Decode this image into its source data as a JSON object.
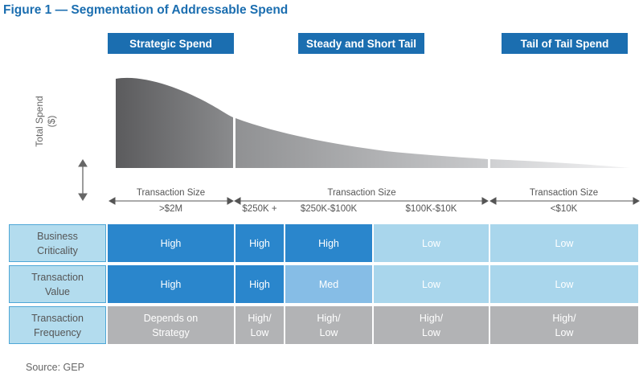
{
  "title": "Figure 1 — Segmentation of Addressable Spend",
  "segments": [
    "Strategic Spend",
    "Steady and Short Tail",
    "Tail of Tail Spend"
  ],
  "y_axis_label_line1": "Total Spend",
  "y_axis_label_line2": "($)",
  "transaction_size": {
    "label": "Transaction Size",
    "strategic_range": ">$2M",
    "steady_ranges": [
      "$250K +",
      "$250K-$100K",
      "$100K-$10K"
    ],
    "tail_range": "<$10K"
  },
  "rows": [
    {
      "header": [
        "Business",
        "Criticality"
      ],
      "cells": [
        [
          "High"
        ],
        [
          "High"
        ],
        [
          "High"
        ],
        [
          "Low"
        ],
        [
          "Low"
        ]
      ]
    },
    {
      "header": [
        "Transaction",
        "Value"
      ],
      "cells": [
        [
          "High"
        ],
        [
          "High"
        ],
        [
          "Med"
        ],
        [
          "Low"
        ],
        [
          "Low"
        ]
      ]
    },
    {
      "header": [
        "Transaction",
        "Frequency"
      ],
      "cells": [
        [
          "Depends on",
          "Strategy"
        ],
        [
          "High/",
          "Low"
        ],
        [
          "High/",
          "Low"
        ],
        [
          "High/",
          "Low"
        ],
        [
          "High/",
          "Low"
        ]
      ]
    }
  ],
  "source": "Source: GEP",
  "colors": {
    "brand_blue": "#1b6eb0",
    "high": "#2a86cc",
    "med": "#86bde6",
    "low": "#a9d6ec",
    "neutral": "#b2b3b5"
  }
}
